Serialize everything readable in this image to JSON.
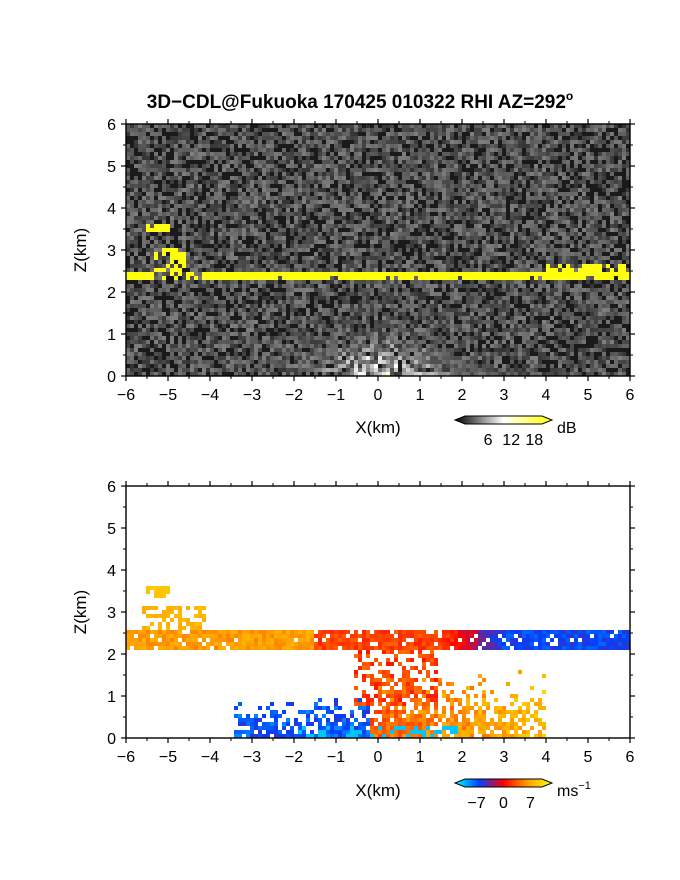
{
  "figure": {
    "title_main": "3D−CDL@Fukuoka 170425 010322 RHI AZ=292",
    "title_degree": "o"
  },
  "chart_data": [
    {
      "type": "heatmap",
      "name": "reflectivity",
      "xlabel": "X(km)",
      "ylabel": "Z(km)",
      "xlim": [
        -6,
        6
      ],
      "ylim": [
        0,
        6
      ],
      "xticks": [
        "−6",
        "−5",
        "−4",
        "−3",
        "−2",
        "−1",
        "0",
        "1",
        "2",
        "3",
        "4",
        "5",
        "6"
      ],
      "yticks": [
        "0",
        "1",
        "2",
        "3",
        "4",
        "5",
        "6"
      ],
      "colorbar": {
        "unit": "dB",
        "ticks": [
          "6",
          "12",
          "18"
        ],
        "tick_values": [
          6,
          12,
          18
        ],
        "range": [
          0,
          20
        ],
        "colors": [
          "#000000",
          "#ffffff",
          "#ffff00"
        ]
      },
      "features": {
        "background_dB": 3,
        "layer": {
          "x": [
            -6,
            6
          ],
          "z": [
            2.25,
            2.5
          ],
          "dB": 19
        },
        "layer_top_bumps": [
          {
            "x": [
              -5.3,
              -4.6
            ],
            "z": [
              2.5,
              3.0
            ]
          },
          {
            "x": [
              3.9,
              6.0
            ],
            "z": [
              2.5,
              2.7
            ]
          }
        ],
        "isolated_patch": {
          "x": [
            -5.6,
            -5.0
          ],
          "z": [
            3.4,
            3.6
          ]
        },
        "near_ground_fan_max_dB": 14
      }
    },
    {
      "type": "heatmap",
      "name": "radial_velocity",
      "xlabel": "X(km)",
      "ylabel": "Z(km)",
      "xlim": [
        -6,
        6
      ],
      "ylim": [
        0,
        6
      ],
      "xticks": [
        "−6",
        "−5",
        "−4",
        "−3",
        "−2",
        "−1",
        "0",
        "1",
        "2",
        "3",
        "4",
        "5",
        "6"
      ],
      "yticks": [
        "0",
        "1",
        "2",
        "3",
        "4",
        "5",
        "6"
      ],
      "colorbar": {
        "unit_base": "ms",
        "unit_exp": "−1",
        "ticks": [
          "−7",
          "0",
          "7"
        ],
        "tick_values": [
          -7,
          0,
          7
        ],
        "range": [
          -10,
          10
        ],
        "colors": [
          "#00ffff",
          "#0040ff",
          "#ff0000",
          "#ffa000",
          "#ffff00"
        ]
      },
      "features": {
        "layer": {
          "x": [
            -6,
            6
          ],
          "z": [
            2.1,
            2.55
          ]
        },
        "layer_velocity_left_ms": 5,
        "layer_velocity_center_ms": 2,
        "layer_velocity_right_ms": -5,
        "upper_left_blob": {
          "x": [
            -5.6,
            -4.1
          ],
          "z": [
            2.55,
            3.1
          ],
          "ms": 6
        },
        "isolated_patch": {
          "x": [
            -5.5,
            -5.0
          ],
          "z": [
            3.35,
            3.6
          ],
          "ms": 7
        },
        "lowlevel_region": {
          "x": [
            -3.4,
            4.0
          ],
          "z": [
            0.0,
            1.6
          ]
        }
      }
    }
  ]
}
